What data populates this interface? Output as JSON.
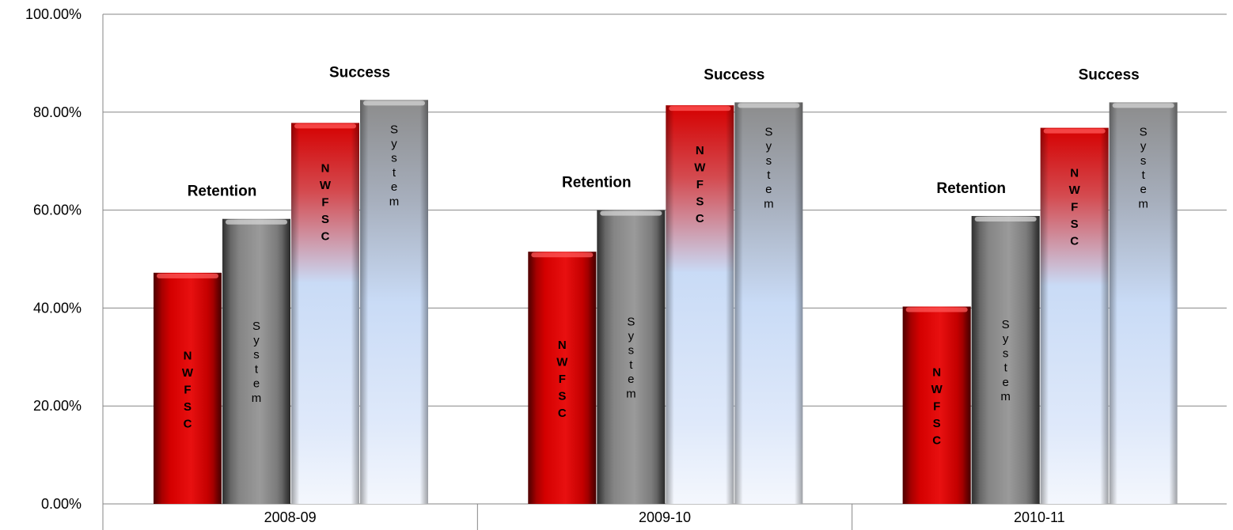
{
  "chart_data": {
    "type": "bar",
    "categories": [
      "2008-09",
      "2009-10",
      "2010-11"
    ],
    "y_ticks": [
      "0.00%",
      "20.00%",
      "40.00%",
      "60.00%",
      "80.00%",
      "100.00%"
    ],
    "ylim": [
      0,
      100
    ],
    "grid": true,
    "group_labels": [
      "Retention",
      "Success"
    ],
    "series": [
      {
        "name": "NWFSC",
        "group": "Retention",
        "values": [
          47.2,
          51.5,
          40.3
        ],
        "color": "#cc0000",
        "style": "solid"
      },
      {
        "name": "System",
        "group": "Retention",
        "values": [
          58.2,
          60.0,
          58.8
        ],
        "color": "#808080",
        "style": "solid"
      },
      {
        "name": "NWFSC",
        "group": "Success",
        "values": [
          77.8,
          81.4,
          76.8
        ],
        "color": "#cc0000",
        "style": "gradient"
      },
      {
        "name": "System",
        "group": "Success",
        "values": [
          82.5,
          82.0,
          82.0
        ],
        "color": "#808080",
        "style": "gradient"
      }
    ],
    "colors": {
      "red": "#cc0000",
      "gray": "#808080",
      "light": "#c9dbf6"
    }
  }
}
